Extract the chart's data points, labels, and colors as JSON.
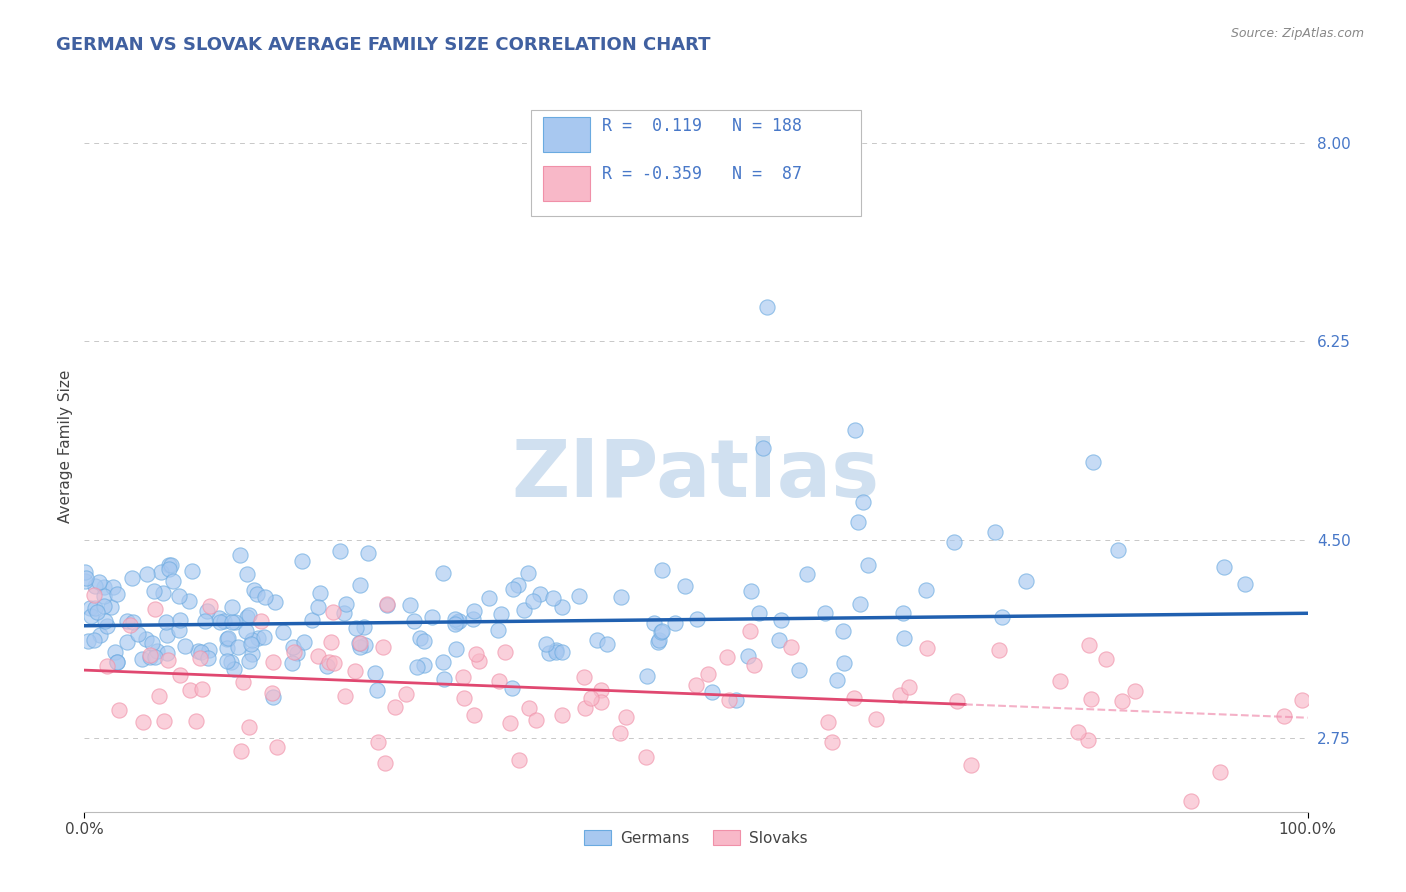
{
  "title": "GERMAN VS SLOVAK AVERAGE FAMILY SIZE CORRELATION CHART",
  "source_text": "Source: ZipAtlas.com",
  "ylabel": "Average Family Size",
  "xlim": [
    0.0,
    100.0
  ],
  "yticks": [
    2.75,
    4.5,
    6.25,
    8.0
  ],
  "german_fill_color": "#a8c8f0",
  "german_edge_color": "#6aaae0",
  "slovak_fill_color": "#f8b8c8",
  "slovak_edge_color": "#f090a8",
  "german_line_color": "#2060b0",
  "slovak_line_color": "#e04870",
  "slovak_dash_color": "#f090b0",
  "german_R": 0.119,
  "german_N": 188,
  "slovak_R": -0.359,
  "slovak_N": 87,
  "watermark": "ZIPatlas",
  "watermark_color": "#d0e0f0",
  "background_color": "#ffffff",
  "grid_color": "#c8c8c8",
  "title_color": "#4060a0",
  "legend_label_german": "Germans",
  "legend_label_slovak": "Slovaks",
  "ytick_color": "#4878c8",
  "source_color": "#888888"
}
